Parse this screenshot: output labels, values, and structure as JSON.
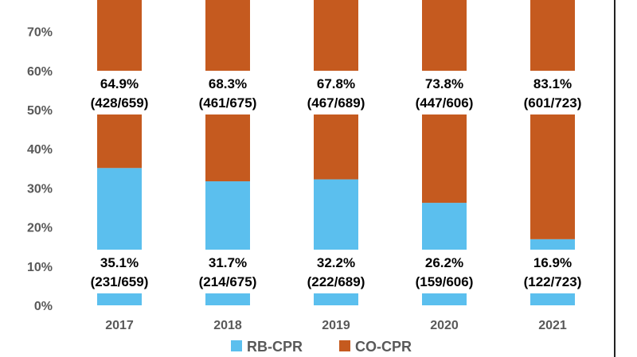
{
  "chart_data": {
    "type": "bar",
    "stacked": true,
    "percent": true,
    "categories": [
      "2017",
      "2018",
      "2019",
      "2020",
      "2021"
    ],
    "series": [
      {
        "name": "RB-CPR",
        "color": "#5bbfee",
        "values": [
          35.1,
          31.7,
          32.2,
          26.2,
          16.9
        ],
        "labels": [
          "35.1%\n(231/659)",
          "31.7%\n(214/675)",
          "32.2%\n(222/689)",
          "26.2%\n(159/606)",
          "16.9%\n(122/723)"
        ]
      },
      {
        "name": "CO-CPR",
        "color": "#c55a1f",
        "values": [
          64.9,
          68.3,
          67.8,
          73.8,
          83.1
        ],
        "labels": [
          "64.9%\n(428/659)",
          "68.3%\n(461/675)",
          "67.8%\n(467/689)",
          "73.8%\n(447/606)",
          "83.1%\n(601/723)"
        ]
      }
    ],
    "yticks": [
      "0%",
      "10%",
      "20%",
      "30%",
      "40%",
      "50%",
      "60%",
      "70%"
    ],
    "ylim": [
      0,
      100
    ],
    "legend_position": "bottom"
  }
}
